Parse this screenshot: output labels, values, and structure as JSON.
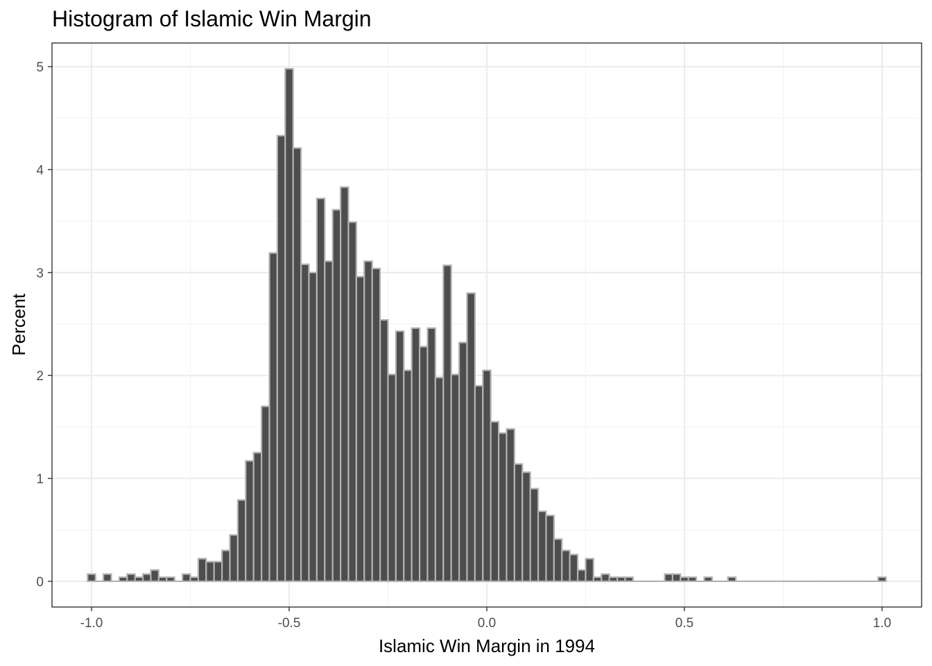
{
  "chart_data": {
    "type": "bar",
    "title": "Histogram of Islamic Win Margin",
    "xlabel": "Islamic Win Margin in 1994",
    "ylabel": "Percent",
    "xlim": [
      -1.1,
      1.1
    ],
    "ylim": [
      -0.25,
      5.23
    ],
    "bin_width": 0.02,
    "bins_start": -1.0,
    "x_ticks": [
      -1.0,
      -0.5,
      0.0,
      0.5,
      1.0
    ],
    "x_tick_labels": [
      "-1.0",
      "-0.5",
      "0.0",
      "0.5",
      "1.0"
    ],
    "y_ticks": [
      0,
      1,
      2,
      3,
      4,
      5
    ],
    "y_tick_labels": [
      "0",
      "1",
      "2",
      "3",
      "4",
      "5"
    ],
    "grid": true,
    "values": [
      0.07,
      0,
      0.07,
      0,
      0.04,
      0.07,
      0.04,
      0.07,
      0.11,
      0.04,
      0.04,
      0,
      0.07,
      0.04,
      0.22,
      0.19,
      0.19,
      0.3,
      0.45,
      0.79,
      1.17,
      1.25,
      1.7,
      3.19,
      4.33,
      4.98,
      4.21,
      3.08,
      3.0,
      3.72,
      3.11,
      3.61,
      3.83,
      3.49,
      2.96,
      3.11,
      3.04,
      2.54,
      2.01,
      2.43,
      2.05,
      2.46,
      2.28,
      2.46,
      1.98,
      3.07,
      2.01,
      2.32,
      2.8,
      1.9,
      2.05,
      1.55,
      1.44,
      1.48,
      1.14,
      1.06,
      0.9,
      0.68,
      0.64,
      0.41,
      0.3,
      0.26,
      0.11,
      0.22,
      0.04,
      0.07,
      0.04,
      0.04,
      0.04,
      0,
      0,
      0,
      0,
      0.07,
      0.07,
      0.04,
      0.04,
      0,
      0.04,
      0,
      0,
      0.04,
      0,
      0,
      0,
      0,
      0,
      0,
      0,
      0,
      0,
      0,
      0,
      0,
      0,
      0,
      0,
      0,
      0,
      0,
      0.04
    ],
    "colors": {
      "bar_fill": "#4d4d4d",
      "bar_stroke": "#b3b3b3",
      "grid_major": "#ebebeb",
      "grid_minor": "#f2f2f2",
      "panel_border": "#333333",
      "tick_text": "#4d4d4d"
    }
  }
}
